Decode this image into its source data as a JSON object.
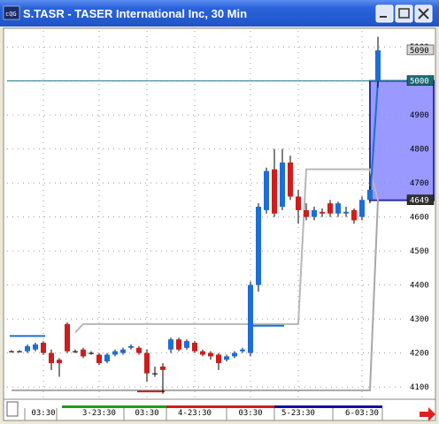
{
  "window": {
    "title": "S.TASR - TASER International Inc, 30 Min"
  },
  "chart_data": {
    "type": "candlestick",
    "open": [
      4205,
      4205,
      4205,
      4210,
      4230,
      4200,
      4180,
      4285,
      4205,
      4210,
      4200,
      4195,
      4175,
      4195,
      4200,
      4215,
      4215,
      4200,
      4140,
      4160,
      4210,
      4240,
      4215,
      4230,
      4205,
      4200,
      4195,
      4180,
      4190,
      4205,
      4200,
      4400,
      4620,
      4740,
      4630,
      4760,
      4660,
      4620,
      4600,
      4615,
      4640,
      4610,
      4610,
      4620,
      4600,
      4650,
      5000
    ],
    "high": [
      4208,
      4208,
      4225,
      4230,
      4235,
      4210,
      4185,
      4290,
      4210,
      4215,
      4205,
      4200,
      4200,
      4210,
      4215,
      4225,
      4220,
      4210,
      4160,
      4170,
      4245,
      4245,
      4240,
      4235,
      4210,
      4205,
      4200,
      4195,
      4205,
      4215,
      4410,
      4640,
      4745,
      4800,
      4800,
      4780,
      4680,
      4640,
      4630,
      4625,
      4650,
      4645,
      4630,
      4625,
      4660,
      4690,
      5130
    ],
    "low": [
      4202,
      4202,
      4200,
      4205,
      4195,
      4150,
      4130,
      4200,
      4200,
      4185,
      4195,
      4165,
      4170,
      4190,
      4195,
      4210,
      4195,
      4115,
      4130,
      4080,
      4200,
      4205,
      4210,
      4200,
      4190,
      4180,
      4150,
      4175,
      4185,
      4200,
      4190,
      4380,
      4610,
      4600,
      4620,
      4650,
      4580,
      4590,
      4590,
      4600,
      4600,
      4600,
      4600,
      4580,
      4590,
      4640,
      4980
    ],
    "close": [
      4205,
      4205,
      4220,
      4225,
      4200,
      4170,
      4170,
      4205,
      4205,
      4190,
      4200,
      4170,
      4195,
      4205,
      4210,
      4220,
      4200,
      4140,
      4140,
      4150,
      4240,
      4210,
      4235,
      4205,
      4195,
      4190,
      4170,
      4190,
      4200,
      4210,
      4400,
      4630,
      4735,
      4610,
      4760,
      4660,
      4620,
      4600,
      4620,
      4610,
      4610,
      4640,
      4615,
      4590,
      4650,
      4680,
      5090
    ],
    "up_color": "#1c6ed8",
    "down_color": "#d01c1c",
    "lines": [
      {
        "color": "#a8a8a8",
        "values": [
          4090,
          4090,
          4090,
          4090,
          4090,
          4090,
          4090,
          4090,
          4090,
          4090,
          4090,
          4090,
          4090,
          4090,
          4090,
          4090,
          4090,
          4090,
          4090,
          4090,
          4090,
          4090,
          4090,
          4090,
          4090,
          4090,
          4090,
          4090,
          4090,
          4090,
          4090,
          4090,
          4090,
          4090,
          4090,
          4090,
          4090,
          4090,
          4090,
          4090,
          4090,
          4090,
          4090,
          4090,
          4090,
          4090,
          4649
        ]
      },
      {
        "color": "#b8b8b8",
        "values": [
          null,
          null,
          null,
          null,
          null,
          null,
          null,
          null,
          4260,
          4285,
          4285,
          4285,
          4285,
          4285,
          4285,
          4285,
          4285,
          4285,
          4285,
          4285,
          4285,
          4285,
          4285,
          4285,
          4285,
          4285,
          4285,
          4285,
          4285,
          4285,
          4285,
          4285,
          4285,
          4285,
          4285,
          4285,
          4285,
          4740,
          4740,
          4740,
          4740,
          4740,
          4740,
          4740,
          4740,
          4740,
          4649
        ]
      },
      {
        "color": "#1c6ed8",
        "values": [
          null,
          null,
          null,
          null,
          null,
          null,
          null,
          null,
          null,
          null,
          null,
          null,
          null,
          null,
          null,
          null,
          null,
          null,
          null,
          null,
          null,
          null,
          null,
          null,
          null,
          null,
          null,
          null,
          null,
          null,
          null,
          null,
          null,
          null,
          null,
          null,
          null,
          null,
          null,
          null,
          null,
          null,
          null,
          null,
          null,
          4650,
          5000
        ]
      }
    ],
    "levels": [
      {
        "from": 0,
        "to": 4,
        "value": 4250,
        "color": "#1c6ed8"
      },
      {
        "from": 30,
        "to": 34,
        "value": 4280,
        "color": "#1c6ed8"
      },
      {
        "from": 16,
        "to": 19,
        "value": 4087,
        "color": "#d01c1c"
      }
    ],
    "zone": [
      4649,
      5000
    ],
    "zone_color": "#9999ff",
    "hline": {
      "value": 5000,
      "color": "#1a7a8a"
    },
    "price_boxes": [
      {
        "value": 5090,
        "label": "5090",
        "bg": "#d8d8d8",
        "fg": "#000"
      },
      {
        "value": 5000,
        "label": "5000",
        "bg": "#1a6a78",
        "fg": "#fff"
      },
      {
        "value": 4649,
        "label": "4649",
        "bg": "#303030",
        "fg": "#fff"
      }
    ],
    "ylim": [
      4069,
      5147
    ],
    "yticks": [
      4100,
      4200,
      4300,
      4400,
      4500,
      4600,
      4700,
      4800,
      4900,
      5000,
      5100
    ],
    "xticks": [
      {
        "value": 4,
        "label": "03:30"
      },
      {
        "value": 11,
        "label": "3-23:30"
      },
      {
        "value": 17,
        "label": "03:30"
      },
      {
        "value": 23,
        "label": "4-23:30"
      },
      {
        "value": 30,
        "label": "03:30"
      },
      {
        "value": 36,
        "label": "5-23:30"
      },
      {
        "value": 44,
        "label": "6-03:30"
      }
    ],
    "grid": true
  }
}
